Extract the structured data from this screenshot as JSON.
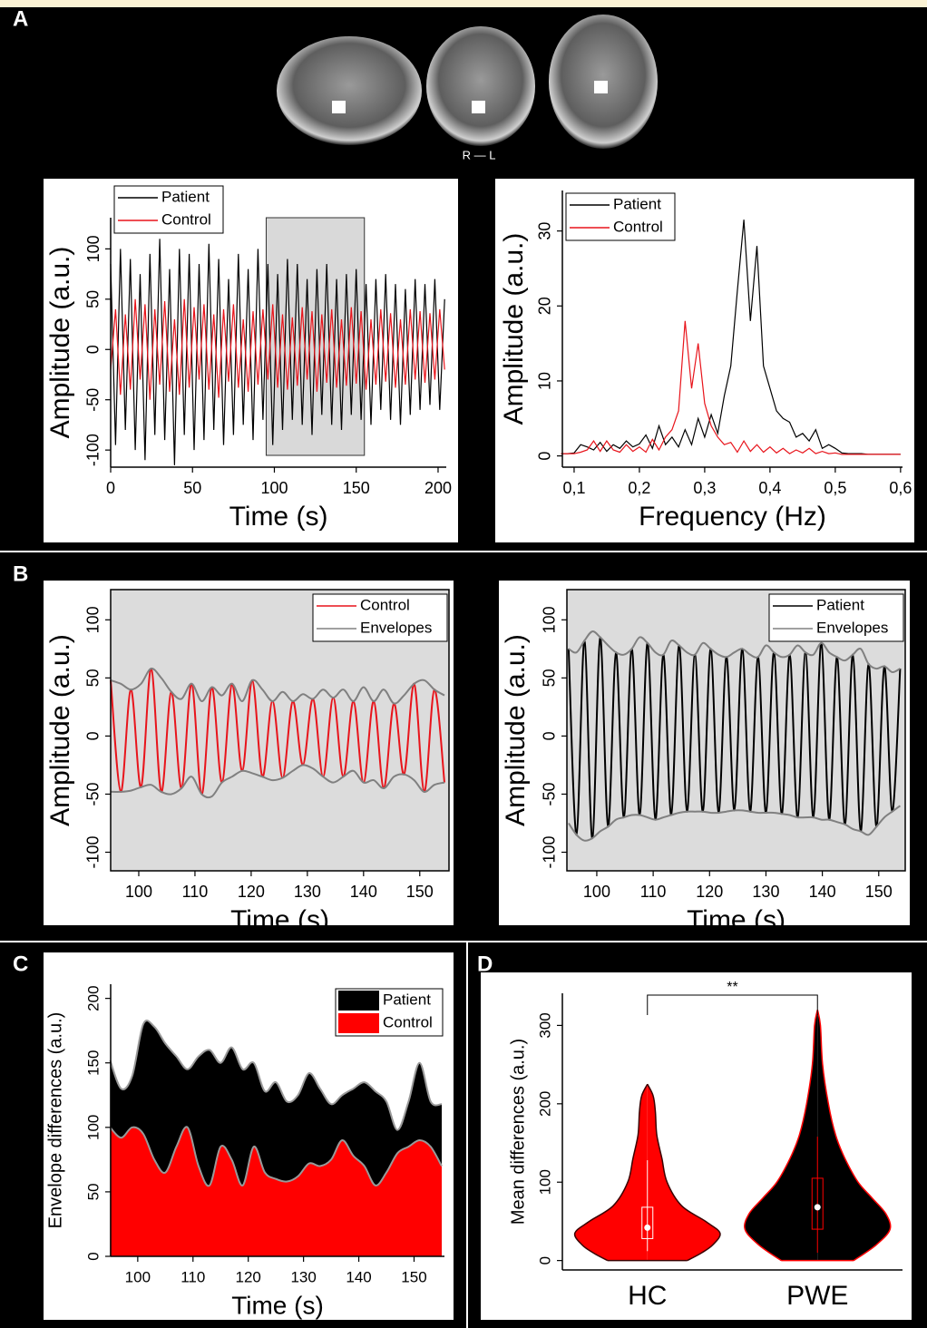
{
  "panel_labels": [
    "A",
    "B",
    "C",
    "D"
  ],
  "brain_caption": "R — L",
  "chart_data": [
    {
      "type": "line",
      "xlabel": "Time (s)",
      "ylabel": "Amplitude (a.u.)",
      "legend": "upper left",
      "xlim": [
        0,
        205
      ],
      "xticks": [
        0,
        50,
        100,
        150,
        200
      ],
      "ylim": [
        -117,
        131
      ],
      "yticks": [
        -100,
        -50,
        0,
        50,
        100
      ],
      "highlight": [
        95,
        155
      ],
      "highlight_color": "#d9d9d9",
      "x": [
        0,
        3,
        6,
        9,
        12,
        15,
        18,
        21,
        24,
        27,
        30,
        33,
        36,
        39,
        42,
        45,
        48,
        51,
        54,
        57,
        60,
        63,
        66,
        69,
        72,
        75,
        78,
        81,
        84,
        87,
        90,
        93,
        96,
        99,
        102,
        105,
        108,
        111,
        114,
        117,
        120,
        123,
        126,
        129,
        132,
        135,
        138,
        141,
        144,
        147,
        150,
        153,
        156,
        159,
        162,
        165,
        168,
        171,
        174,
        177,
        180,
        183,
        186,
        189,
        192,
        195,
        198,
        201,
        204
      ],
      "series": [
        {
          "name": "Patient",
          "color": "#000000",
          "values": [
            85,
            -95,
            100,
            -80,
            90,
            -100,
            75,
            -110,
            95,
            -85,
            110,
            -90,
            80,
            -115,
            100,
            -85,
            95,
            -100,
            85,
            -90,
            105,
            -80,
            90,
            -95,
            70,
            -85,
            95,
            -75,
            80,
            -90,
            100,
            -70,
            85,
            -95,
            75,
            -80,
            90,
            -70,
            85,
            -75,
            70,
            -85,
            80,
            -65,
            85,
            -75,
            70,
            -80,
            75,
            -65,
            80,
            -70,
            65,
            -75,
            70,
            -60,
            75,
            -70,
            65,
            -75,
            60,
            -65,
            70,
            -60,
            65,
            -55,
            70,
            -60,
            50
          ]
        },
        {
          "name": "Control",
          "color": "#e8141b",
          "values": [
            -20,
            40,
            -45,
            35,
            -40,
            50,
            -30,
            45,
            -50,
            40,
            -35,
            48,
            -42,
            30,
            -45,
            50,
            -38,
            42,
            -30,
            45,
            -40,
            35,
            -48,
            40,
            -32,
            45,
            -38,
            30,
            -42,
            38,
            -35,
            40,
            -30,
            45,
            -38,
            35,
            -40,
            32,
            -36,
            42,
            -30,
            38,
            -42,
            35,
            -33,
            40,
            -38,
            30,
            -36,
            42,
            -34,
            38,
            -40,
            30,
            -35,
            40,
            -32,
            36,
            -38,
            30,
            -35,
            40,
            -30,
            38,
            -33,
            36,
            -30,
            40,
            -20
          ]
        }
      ]
    },
    {
      "type": "line",
      "xlabel": "Frequency (Hz)",
      "ylabel": "Amplitude (a.u.)",
      "legend": "upper left",
      "xlim": [
        0.082,
        0.603
      ],
      "xticks": [
        {
          "value": 0.1,
          "label": "0,1"
        },
        {
          "value": 0.2,
          "label": "0,2"
        },
        {
          "value": 0.3,
          "label": "0,3"
        },
        {
          "value": 0.4,
          "label": "0,4"
        },
        {
          "value": 0.5,
          "label": "0,5"
        },
        {
          "value": 0.6,
          "label": "0,6"
        }
      ],
      "ylim": [
        -1.5,
        35.4
      ],
      "yticks": [
        0,
        10,
        20,
        30
      ],
      "x": [
        0.08,
        0.09,
        0.1,
        0.11,
        0.12,
        0.13,
        0.14,
        0.15,
        0.16,
        0.17,
        0.18,
        0.19,
        0.2,
        0.21,
        0.22,
        0.23,
        0.24,
        0.25,
        0.26,
        0.27,
        0.28,
        0.29,
        0.3,
        0.31,
        0.32,
        0.33,
        0.34,
        0.35,
        0.36,
        0.37,
        0.38,
        0.39,
        0.4,
        0.41,
        0.42,
        0.43,
        0.44,
        0.45,
        0.46,
        0.47,
        0.48,
        0.49,
        0.5,
        0.51,
        0.52,
        0.53,
        0.54,
        0.55,
        0.56,
        0.57,
        0.58,
        0.59,
        0.6
      ],
      "series": [
        {
          "name": "Patient",
          "color": "#000000",
          "values": [
            0.3,
            0.3,
            0.4,
            1.5,
            1.2,
            0.8,
            1.8,
            0.6,
            1.5,
            1.0,
            2.0,
            1.2,
            1.6,
            2.8,
            1.0,
            4.0,
            1.5,
            2.5,
            1.2,
            3.5,
            1.5,
            5.0,
            2.5,
            5.5,
            3.0,
            8.0,
            12,
            22,
            31.5,
            18,
            28,
            12,
            9,
            6,
            5,
            4.5,
            2.5,
            3,
            2,
            3.5,
            1,
            1.5,
            1,
            0.4,
            0.3,
            0.3,
            0.3,
            0.2,
            0.2,
            0.2,
            0.2,
            0.2,
            0.2
          ]
        },
        {
          "name": "Control",
          "color": "#e8141b",
          "values": [
            0.3,
            0.3,
            0.3,
            0.5,
            0.8,
            2.0,
            0.6,
            2.0,
            0.8,
            0.5,
            1.5,
            0.6,
            1.2,
            0.5,
            2.2,
            0.8,
            2.5,
            3.5,
            6,
            18,
            9,
            15,
            7,
            4,
            2.5,
            1.5,
            1.8,
            0.5,
            2,
            0.6,
            1.5,
            0.5,
            1.2,
            0.4,
            1,
            0.3,
            0.8,
            0.4,
            1,
            0.3,
            0.6,
            0.3,
            0.4,
            0.2,
            0.2,
            0.2,
            0.2,
            0.2,
            0.2,
            0.2,
            0.2,
            0.2,
            0.2
          ]
        }
      ]
    },
    {
      "type": "line",
      "smooth": true,
      "frame": true,
      "background": "#dcdcdc",
      "xlabel": "Time (s)",
      "ylabel": "Amplitude (a.u.)",
      "legend": "upper right",
      "xlim": [
        95,
        155.2
      ],
      "xticks": [
        100,
        110,
        120,
        130,
        140,
        150
      ],
      "ylim": [
        -116,
        126
      ],
      "yticks": [
        -100,
        -50,
        0,
        50,
        100
      ],
      "x": [
        95,
        96.8,
        98.6,
        100.4,
        102.2,
        104,
        105.8,
        107.6,
        109.4,
        111.2,
        113,
        114.8,
        116.6,
        118.4,
        120.2,
        122,
        123.8,
        125.6,
        127.4,
        129.2,
        131,
        132.8,
        134.6,
        136.4,
        138.2,
        140,
        141.8,
        143.6,
        145.4,
        147.2,
        149,
        150.8,
        152.6,
        154.4
      ],
      "series": [
        {
          "name": "Control",
          "color": "#e8141b",
          "values": [
            48,
            -48,
            40,
            -44,
            58,
            -48,
            38,
            -45,
            45,
            -50,
            42,
            -40,
            45,
            -30,
            48,
            -35,
            30,
            -36,
            30,
            -25,
            32,
            -35,
            33,
            -35,
            30,
            -40,
            30,
            -45,
            28,
            -33,
            45,
            -48,
            40,
            -40
          ]
        },
        {
          "name": "Envelopes",
          "color": "#808080",
          "values": [
            48,
            45,
            40,
            45,
            58,
            50,
            38,
            32,
            45,
            30,
            42,
            35,
            45,
            30,
            48,
            40,
            30,
            38,
            30,
            36,
            32,
            40,
            33,
            40,
            30,
            42,
            30,
            40,
            28,
            35,
            45,
            48,
            40,
            35
          ],
          "lower": [
            -48,
            -48,
            -47,
            -44,
            -42,
            -48,
            -50,
            -45,
            -35,
            -50,
            -52,
            -40,
            -35,
            -30,
            -32,
            -35,
            -38,
            -36,
            -30,
            -25,
            -28,
            -35,
            -40,
            -35,
            -30,
            -40,
            -38,
            -45,
            -35,
            -33,
            -38,
            -48,
            -42,
            -40
          ]
        }
      ]
    },
    {
      "type": "line",
      "smooth": true,
      "frame": true,
      "background": "#dcdcdc",
      "xlabel": "Time (s)",
      "ylabel": "Amplitude (a.u.)",
      "legend": "upper right",
      "xlim": [
        94.7,
        154.7
      ],
      "xticks": [
        100,
        110,
        120,
        130,
        140,
        150
      ],
      "ylim": [
        -116,
        126
      ],
      "yticks": [
        -100,
        -50,
        0,
        50,
        100
      ],
      "x": [
        95,
        96.4,
        97.8,
        99.2,
        100.6,
        102,
        103.4,
        104.8,
        106.2,
        107.6,
        109,
        110.4,
        111.8,
        113.2,
        114.6,
        116,
        117.4,
        118.8,
        120.2,
        121.6,
        123,
        124.4,
        125.8,
        127.2,
        128.6,
        130,
        131.4,
        132.8,
        134.2,
        135.6,
        137,
        138.4,
        139.8,
        141.2,
        142.6,
        144,
        145.4,
        146.8,
        148.2,
        149.6,
        151,
        152.4,
        153.8
      ],
      "series": [
        {
          "name": "Patient",
          "color": "#000000",
          "values": [
            75,
            -85,
            82,
            -88,
            85,
            -78,
            72,
            -70,
            75,
            -68,
            80,
            -72,
            70,
            -68,
            78,
            -65,
            70,
            -65,
            75,
            -66,
            68,
            -64,
            75,
            -65,
            68,
            -66,
            72,
            -67,
            70,
            -70,
            72,
            -70,
            80,
            -72,
            68,
            -76,
            70,
            -82,
            62,
            -78,
            60,
            -65,
            58
          ]
        },
        {
          "name": "Envelopes",
          "color": "#808080",
          "values": [
            75,
            72,
            82,
            90,
            85,
            78,
            72,
            70,
            75,
            85,
            80,
            72,
            70,
            82,
            78,
            72,
            70,
            80,
            75,
            70,
            68,
            72,
            75,
            70,
            68,
            78,
            72,
            68,
            70,
            78,
            72,
            70,
            80,
            72,
            68,
            65,
            70,
            75,
            62,
            58,
            60,
            55,
            58
          ],
          "lower": [
            -75,
            -85,
            -90,
            -88,
            -82,
            -78,
            -72,
            -70,
            -68,
            -68,
            -70,
            -72,
            -70,
            -68,
            -66,
            -65,
            -65,
            -65,
            -66,
            -66,
            -65,
            -64,
            -64,
            -65,
            -66,
            -66,
            -66,
            -67,
            -68,
            -70,
            -70,
            -70,
            -72,
            -72,
            -74,
            -76,
            -80,
            -82,
            -85,
            -78,
            -70,
            -65,
            -60
          ]
        }
      ]
    },
    {
      "type": "area",
      "smooth": true,
      "xlabel": "Time (s)",
      "ylabel": "Envelope differences (a.u.)",
      "legend": "upper right",
      "xlim": [
        95.1,
        155.5
      ],
      "xticks": [
        100,
        110,
        120,
        130,
        140,
        150
      ],
      "ylim": [
        0,
        211
      ],
      "yticks": [
        0,
        50,
        100,
        150,
        200
      ],
      "x": [
        95,
        97,
        99,
        101,
        103,
        105,
        107,
        109,
        111,
        113,
        115,
        117,
        119,
        121,
        123,
        125,
        127,
        129,
        131,
        133,
        135,
        137,
        139,
        141,
        143,
        145,
        147,
        149,
        151,
        153,
        155
      ],
      "series": [
        {
          "name": "Patient",
          "color": "#000000",
          "values": [
            152,
            130,
            140,
            180,
            178,
            165,
            155,
            145,
            155,
            160,
            150,
            162,
            145,
            150,
            128,
            135,
            120,
            125,
            142,
            130,
            118,
            125,
            130,
            135,
            128,
            120,
            98,
            120,
            150,
            120,
            118
          ]
        },
        {
          "name": "Control",
          "color": "#ff0000",
          "values": [
            100,
            92,
            100,
            95,
            75,
            65,
            85,
            100,
            70,
            55,
            85,
            75,
            55,
            85,
            65,
            60,
            58,
            62,
            72,
            70,
            75,
            90,
            78,
            70,
            55,
            65,
            80,
            85,
            90,
            85,
            70
          ]
        }
      ]
    },
    {
      "type": "violin",
      "ylabel": "Mean differences (a.u.)",
      "annotation": "**",
      "ylim": [
        -12,
        341
      ],
      "yticks": [
        0,
        100,
        200,
        300
      ],
      "groups": [
        {
          "name": "HC",
          "fill": "#ff0000",
          "edge": "#3a0000",
          "y": [
            0,
            10,
            20,
            35,
            50,
            70,
            100,
            130,
            160,
            190,
            210,
            225
          ],
          "density": [
            0.55,
            0.75,
            0.9,
            1,
            0.8,
            0.47,
            0.27,
            0.2,
            0.13,
            0.11,
            0.08,
            0
          ],
          "box": [
            28,
            68
          ],
          "median": 42,
          "whisker": [
            12,
            128
          ]
        },
        {
          "name": "PWE",
          "fill": "#000000",
          "edge": "#ff0000",
          "y": [
            0,
            20,
            40,
            60,
            80,
            100,
            130,
            160,
            200,
            250,
            300,
            320
          ],
          "density": [
            0.5,
            0.81,
            1,
            0.94,
            0.75,
            0.56,
            0.38,
            0.25,
            0.15,
            0.07,
            0.04,
            0
          ],
          "box": [
            40,
            105
          ],
          "median": 68,
          "whisker": [
            10,
            158
          ]
        }
      ]
    }
  ]
}
